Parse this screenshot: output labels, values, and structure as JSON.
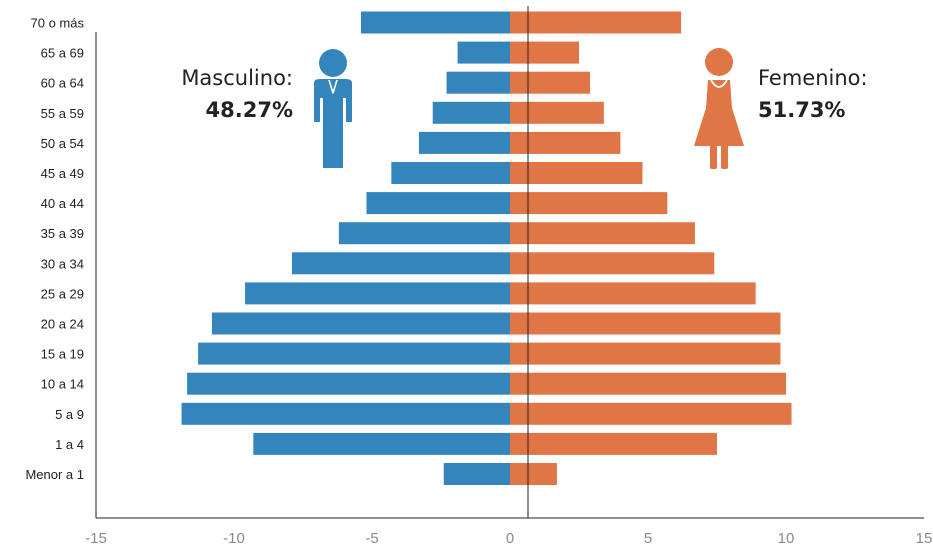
{
  "chart_data": {
    "type": "bar",
    "orientation": "horizontal",
    "categories": [
      "70 o más",
      "65 a 69",
      "60 a 64",
      "55 a 59",
      "50 a 54",
      "45 a 49",
      "40 a 44",
      "35 a 39",
      "30 a 34",
      "25 a 29",
      "20 a 24",
      "15 a 19",
      "10 a 14",
      "5 a 9",
      "1 a 4",
      "Menor a 1"
    ],
    "series": [
      {
        "name": "Masculino",
        "color": "#3585bd",
        "values": [
          -5.4,
          -1.9,
          -2.3,
          -2.8,
          -3.3,
          -4.3,
          -5.2,
          -6.2,
          -7.9,
          -9.6,
          -10.8,
          -11.3,
          -11.7,
          -11.9,
          -9.3,
          -2.4
        ]
      },
      {
        "name": "Femenino",
        "color": "#e07545",
        "values": [
          6.2,
          2.5,
          2.9,
          3.4,
          4.0,
          4.8,
          5.7,
          6.7,
          7.4,
          8.9,
          9.8,
          9.8,
          10.0,
          10.2,
          7.5,
          1.7
        ]
      }
    ],
    "xlim": [
      -15,
      15
    ],
    "xticks": [
      -15,
      -10,
      -5,
      0,
      5,
      10,
      15
    ],
    "grid": false,
    "title": "",
    "xlabel": "",
    "ylabel": "",
    "annotations": {
      "male": {
        "label": "Masculino:",
        "value": "48.27%",
        "icon": "man-icon"
      },
      "female": {
        "label": "Femenino:",
        "value": "51.73%",
        "icon": "woman-icon"
      }
    }
  }
}
